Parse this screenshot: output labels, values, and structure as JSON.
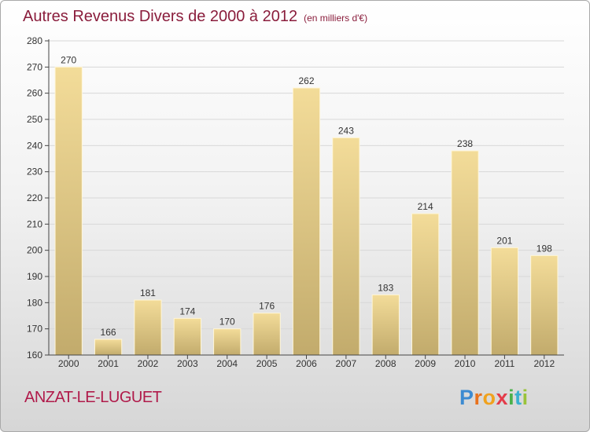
{
  "header": {
    "title": "Autres Revenus Divers de 2000 à 2012",
    "subtitle": "(en milliers d'€)"
  },
  "footer": {
    "commune": "ANZAT-LE-LUGUET",
    "logo": [
      "P",
      "r",
      "o",
      "x",
      "i",
      "t",
      "i"
    ]
  },
  "colors": {
    "title": "#8a1d3c",
    "bar_light": "#f3dc99",
    "bar_dark": "#c2ab6c",
    "axis": "#444444",
    "grid": "#d8d8d8"
  },
  "chart_data": {
    "type": "bar",
    "title": "Autres Revenus Divers de 2000 à 2012",
    "subtitle": "(en milliers d'€)",
    "categories": [
      "2000",
      "2001",
      "2002",
      "2003",
      "2004",
      "2005",
      "2006",
      "2007",
      "2008",
      "2009",
      "2010",
      "2011",
      "2012"
    ],
    "values": [
      270,
      166,
      181,
      174,
      170,
      176,
      262,
      243,
      183,
      214,
      238,
      201,
      198
    ],
    "ylim": [
      160,
      280
    ],
    "yticks": [
      160,
      170,
      180,
      190,
      200,
      210,
      220,
      230,
      240,
      250,
      260,
      270,
      280
    ],
    "grid": true,
    "xlabel": "",
    "ylabel": ""
  }
}
